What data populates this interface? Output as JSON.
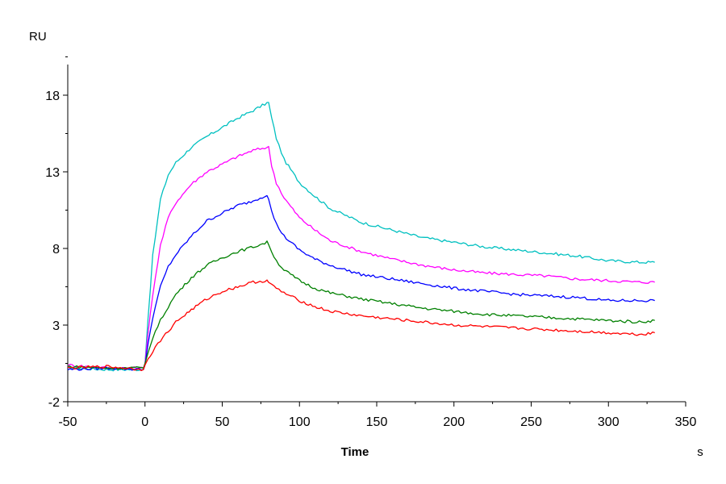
{
  "chart_data": {
    "type": "line",
    "title": "",
    "xlabel": "Time",
    "ylabel": "RU",
    "x_unit": "s",
    "xlim": [
      -50,
      350
    ],
    "ylim": [
      -2,
      20
    ],
    "x_ticks": [
      -50,
      0,
      50,
      100,
      150,
      200,
      250,
      300,
      350
    ],
    "y_ticks": [
      -2,
      3,
      8,
      13,
      18
    ],
    "grid": false,
    "legend": "none",
    "series": [
      {
        "color": "#00c0c0",
        "x": [
          -50,
          -25,
          -1,
          0,
          2,
          5,
          10,
          15,
          20,
          30,
          40,
          50,
          60,
          70,
          79,
          80,
          82,
          85,
          90,
          100,
          110,
          120,
          140,
          160,
          180,
          200,
          220,
          240,
          260,
          280,
          300,
          320,
          330
        ],
        "y": [
          0.2,
          0.1,
          0.1,
          0.5,
          3.5,
          7.5,
          11.2,
          12.8,
          13.6,
          14.6,
          15.3,
          15.9,
          16.5,
          17.0,
          17.5,
          17.5,
          16.5,
          15.2,
          13.8,
          12.3,
          11.4,
          10.6,
          9.7,
          9.2,
          8.7,
          8.4,
          8.1,
          7.9,
          7.7,
          7.5,
          7.2,
          7.1,
          7.1
        ]
      },
      {
        "color": "#ff00ff",
        "x": [
          -50,
          -25,
          -1,
          0,
          2,
          5,
          10,
          15,
          20,
          30,
          40,
          50,
          60,
          70,
          79,
          80,
          82,
          85,
          90,
          100,
          110,
          120,
          140,
          160,
          180,
          200,
          220,
          240,
          260,
          280,
          300,
          320,
          330
        ],
        "y": [
          0.4,
          0.2,
          0.2,
          0.5,
          2.5,
          5.0,
          8.2,
          10.0,
          11.0,
          12.2,
          13.0,
          13.5,
          14.0,
          14.4,
          14.6,
          14.6,
          13.4,
          12.3,
          11.3,
          10.0,
          9.2,
          8.5,
          7.8,
          7.3,
          6.9,
          6.6,
          6.4,
          6.3,
          6.2,
          6.0,
          5.9,
          5.8,
          5.8
        ]
      },
      {
        "color": "#0000ff",
        "x": [
          -50,
          -25,
          -1,
          0,
          2,
          5,
          10,
          15,
          20,
          30,
          40,
          50,
          60,
          70,
          79,
          80,
          82,
          85,
          90,
          100,
          110,
          120,
          140,
          160,
          180,
          200,
          220,
          240,
          260,
          280,
          300,
          320,
          330
        ],
        "y": [
          0.1,
          0.2,
          0.1,
          0.4,
          1.8,
          3.5,
          5.5,
          6.8,
          7.6,
          8.8,
          9.8,
          10.3,
          10.8,
          11.1,
          11.5,
          11.3,
          10.4,
          9.6,
          8.8,
          7.9,
          7.3,
          6.9,
          6.3,
          6.0,
          5.7,
          5.4,
          5.2,
          5.0,
          4.9,
          4.8,
          4.6,
          4.6,
          4.6
        ]
      },
      {
        "color": "#008000",
        "x": [
          -50,
          -25,
          -1,
          0,
          2,
          5,
          10,
          15,
          20,
          30,
          40,
          50,
          60,
          70,
          79,
          80,
          82,
          85,
          90,
          100,
          110,
          120,
          140,
          160,
          180,
          200,
          220,
          240,
          260,
          280,
          300,
          320,
          330
        ],
        "y": [
          0.3,
          0.2,
          0.2,
          0.5,
          1.2,
          2.2,
          3.3,
          4.2,
          5.0,
          6.1,
          6.9,
          7.4,
          7.8,
          8.1,
          8.4,
          8.3,
          7.8,
          7.2,
          6.6,
          5.9,
          5.4,
          5.1,
          4.7,
          4.4,
          4.1,
          3.9,
          3.7,
          3.6,
          3.5,
          3.4,
          3.3,
          3.2,
          3.3
        ]
      },
      {
        "color": "#ff0000",
        "x": [
          -50,
          -25,
          -1,
          0,
          2,
          5,
          10,
          15,
          20,
          30,
          40,
          50,
          60,
          70,
          79,
          80,
          82,
          85,
          90,
          100,
          110,
          120,
          140,
          160,
          180,
          200,
          220,
          240,
          260,
          280,
          300,
          320,
          330
        ],
        "y": [
          0.2,
          0.3,
          0.1,
          0.4,
          0.8,
          1.3,
          2.0,
          2.6,
          3.2,
          4.0,
          4.7,
          5.2,
          5.5,
          5.8,
          5.9,
          5.8,
          5.6,
          5.4,
          5.1,
          4.6,
          4.2,
          3.9,
          3.6,
          3.4,
          3.2,
          3.0,
          2.9,
          2.8,
          2.7,
          2.6,
          2.5,
          2.4,
          2.5
        ]
      }
    ]
  }
}
